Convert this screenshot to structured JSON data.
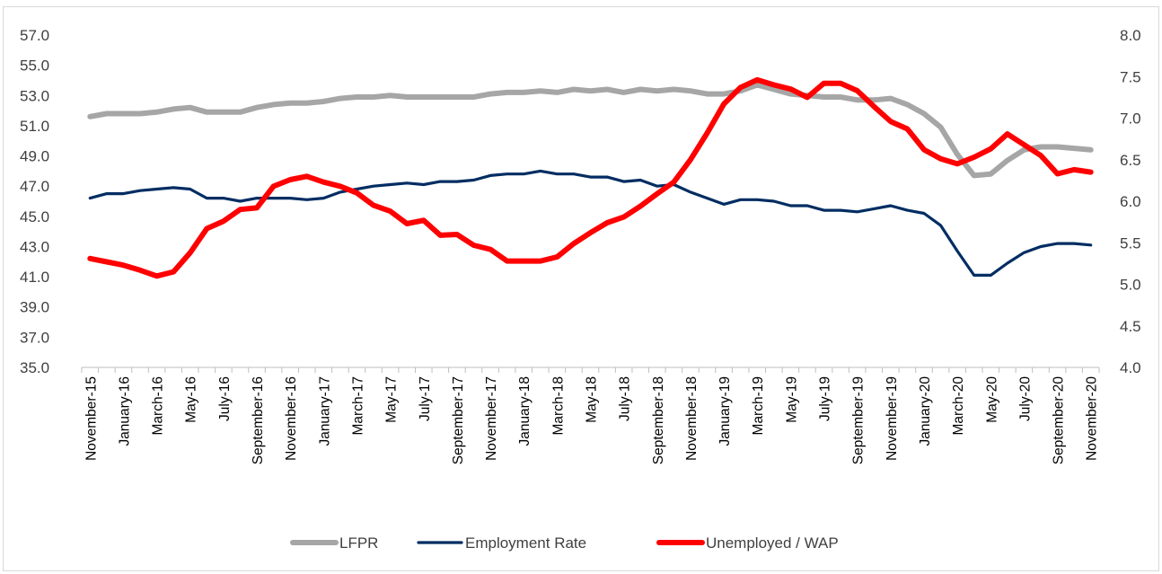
{
  "chart_data": {
    "type": "line",
    "title": "",
    "x": [
      "November-15",
      "December-15",
      "January-16",
      "February-16",
      "March-16",
      "April-16",
      "May-16",
      "June-16",
      "July-16",
      "August-16",
      "September-16",
      "October-16",
      "November-16",
      "December-16",
      "January-17",
      "February-17",
      "March-17",
      "April-17",
      "May-17",
      "June-17",
      "July-17",
      "August-17",
      "September-17",
      "October-17",
      "November-17",
      "December-17",
      "January-18",
      "February-18",
      "March-18",
      "April-18",
      "May-18",
      "June-18",
      "July-18",
      "August-18",
      "September-18",
      "October-18",
      "November-18",
      "December-18",
      "January-19",
      "February-19",
      "March-19",
      "April-19",
      "May-19",
      "June-19",
      "July-19",
      "August-19",
      "September-19",
      "October-19",
      "November-19",
      "December-19",
      "January-20",
      "February-20",
      "March-20",
      "April-20",
      "May-20",
      "June-20",
      "July-20",
      "August-20",
      "September-20",
      "October-20",
      "November-20"
    ],
    "x_tick_labels": [
      "November-15",
      "January-16",
      "March-16",
      "May-16",
      "July-16",
      "September-16",
      "November-16",
      "January-17",
      "March-17",
      "May-17",
      "July-17",
      "September-17",
      "November-17",
      "January-18",
      "March-18",
      "May-18",
      "July-18",
      "September-18",
      "November-18",
      "January-19",
      "March-19",
      "May-19",
      "July-19",
      "September-19",
      "November-19",
      "January-20",
      "March-20",
      "May-20",
      "July-20",
      "September-20",
      "November-20"
    ],
    "y_left": {
      "min": 35.0,
      "max": 57.0,
      "ticks": [
        "35.0",
        "37.0",
        "39.0",
        "41.0",
        "43.0",
        "45.0",
        "47.0",
        "49.0",
        "51.0",
        "53.0",
        "55.0",
        "57.0"
      ]
    },
    "y_right": {
      "min": 4.0,
      "max": 8.0,
      "ticks": [
        "4.0",
        "4.5",
        "5.0",
        "5.5",
        "6.0",
        "6.5",
        "7.0",
        "7.5",
        "8.0"
      ]
    },
    "grid": false,
    "legend_position": "bottom",
    "series": [
      {
        "name": "LFPR",
        "axis": "left",
        "color": "#a6a6a6",
        "values": [
          51.6,
          51.8,
          51.8,
          51.8,
          51.9,
          52.1,
          52.2,
          51.9,
          51.9,
          51.9,
          52.2,
          52.4,
          52.5,
          52.5,
          52.6,
          52.8,
          52.9,
          52.9,
          53.0,
          52.9,
          52.9,
          52.9,
          52.9,
          52.9,
          53.1,
          53.2,
          53.2,
          53.3,
          53.2,
          53.4,
          53.3,
          53.4,
          53.2,
          53.4,
          53.3,
          53.4,
          53.3,
          53.1,
          53.1,
          53.3,
          53.7,
          53.4,
          53.1,
          53.0,
          52.9,
          52.9,
          52.7,
          52.7,
          52.8,
          52.4,
          51.8,
          50.9,
          49.1,
          47.7,
          47.8,
          48.7,
          49.4,
          49.6,
          49.6,
          49.5,
          49.4
        ]
      },
      {
        "name": "Employment Rate",
        "axis": "left",
        "color": "#002d62",
        "values": [
          46.2,
          46.5,
          46.5,
          46.7,
          46.8,
          46.9,
          46.8,
          46.2,
          46.2,
          46.0,
          46.2,
          46.2,
          46.2,
          46.1,
          46.2,
          46.6,
          46.8,
          47.0,
          47.1,
          47.2,
          47.1,
          47.3,
          47.3,
          47.4,
          47.7,
          47.8,
          47.8,
          48.0,
          47.8,
          47.8,
          47.6,
          47.6,
          47.3,
          47.4,
          47.0,
          47.1,
          46.6,
          46.2,
          45.8,
          46.1,
          46.1,
          46.0,
          45.7,
          45.7,
          45.4,
          45.4,
          45.3,
          45.5,
          45.7,
          45.4,
          45.2,
          44.4,
          42.7,
          41.1,
          41.1,
          41.9,
          42.6,
          43.0,
          43.2,
          43.2,
          43.1
        ]
      },
      {
        "name": "Unemployed / WAP",
        "axis": "right",
        "color": "#ff0000",
        "values": [
          5.31,
          5.27,
          5.23,
          5.17,
          5.1,
          5.15,
          5.38,
          5.67,
          5.76,
          5.9,
          5.92,
          6.18,
          6.26,
          6.3,
          6.23,
          6.18,
          6.1,
          5.95,
          5.88,
          5.73,
          5.77,
          5.59,
          5.6,
          5.47,
          5.42,
          5.28,
          5.28,
          5.28,
          5.33,
          5.49,
          5.62,
          5.74,
          5.81,
          5.94,
          6.09,
          6.23,
          6.5,
          6.82,
          7.17,
          7.37,
          7.46,
          7.4,
          7.35,
          7.25,
          7.42,
          7.42,
          7.33,
          7.14,
          6.96,
          6.87,
          6.62,
          6.51,
          6.45,
          6.53,
          6.63,
          6.81,
          6.68,
          6.55,
          6.33,
          6.38,
          6.35
        ]
      }
    ]
  }
}
